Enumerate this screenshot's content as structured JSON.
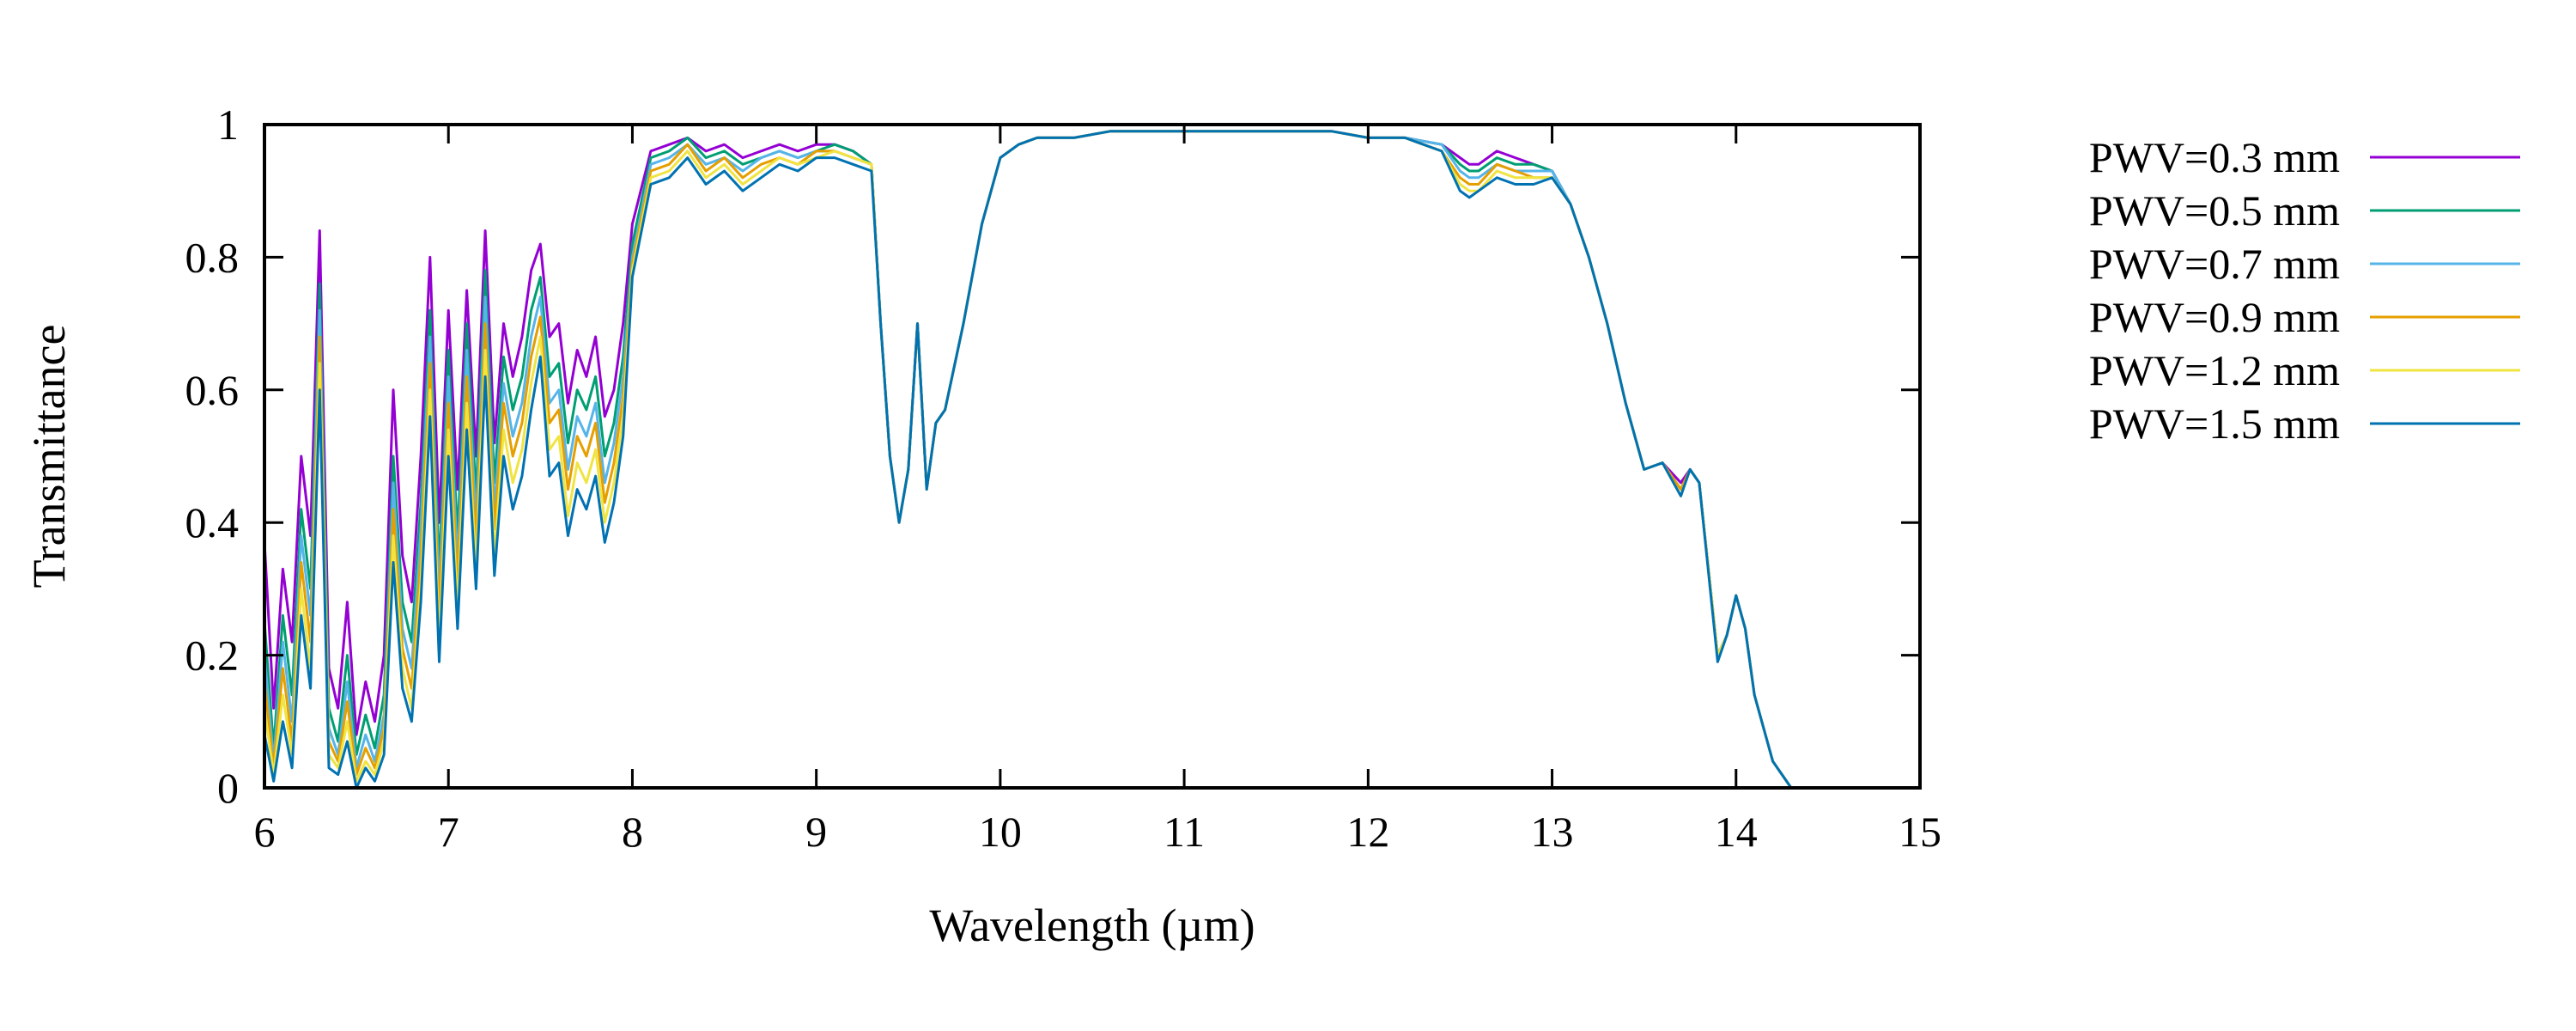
{
  "chart_data": {
    "type": "line",
    "xlabel": "Wavelength (µm)",
    "ylabel": "Transmittance",
    "xlim": [
      6,
      15
    ],
    "ylim": [
      0,
      1
    ],
    "xticks": [
      "6",
      "7",
      "8",
      "9",
      "10",
      "11",
      "12",
      "13",
      "14",
      "15"
    ],
    "yticks": [
      "0",
      "0.2",
      "0.4",
      "0.6",
      "0.8",
      "1"
    ],
    "grid": false,
    "legend_position": "outside-right",
    "x": [
      6.0,
      6.05,
      6.1,
      6.15,
      6.2,
      6.25,
      6.3,
      6.35,
      6.4,
      6.45,
      6.5,
      6.55,
      6.6,
      6.65,
      6.7,
      6.75,
      6.8,
      6.85,
      6.9,
      6.95,
      7.0,
      7.05,
      7.1,
      7.15,
      7.2,
      7.25,
      7.3,
      7.35,
      7.4,
      7.45,
      7.5,
      7.55,
      7.6,
      7.65,
      7.7,
      7.75,
      7.8,
      7.85,
      7.9,
      7.95,
      8.0,
      8.1,
      8.2,
      8.3,
      8.4,
      8.5,
      8.6,
      8.7,
      8.8,
      8.9,
      9.0,
      9.1,
      9.2,
      9.3,
      9.35,
      9.4,
      9.45,
      9.5,
      9.55,
      9.6,
      9.65,
      9.7,
      9.8,
      9.9,
      10.0,
      10.1,
      10.2,
      10.4,
      10.6,
      10.8,
      11.0,
      11.2,
      11.4,
      11.6,
      11.8,
      12.0,
      12.2,
      12.4,
      12.5,
      12.55,
      12.6,
      12.7,
      12.8,
      12.9,
      13.0,
      13.1,
      13.2,
      13.3,
      13.4,
      13.5,
      13.6,
      13.7,
      13.75,
      13.8,
      13.9,
      13.95,
      14.0,
      14.05,
      14.1,
      14.2,
      14.3,
      14.4,
      14.5,
      15.0
    ],
    "series": [
      {
        "name": "PWV=0.3 mm",
        "color": "#9400d3",
        "values": [
          0.37,
          0.12,
          0.33,
          0.22,
          0.5,
          0.38,
          0.84,
          0.18,
          0.12,
          0.28,
          0.08,
          0.16,
          0.1,
          0.2,
          0.6,
          0.35,
          0.28,
          0.5,
          0.8,
          0.4,
          0.72,
          0.45,
          0.75,
          0.5,
          0.84,
          0.52,
          0.7,
          0.62,
          0.68,
          0.78,
          0.82,
          0.68,
          0.7,
          0.58,
          0.66,
          0.62,
          0.68,
          0.56,
          0.6,
          0.7,
          0.85,
          0.96,
          0.97,
          0.98,
          0.96,
          0.97,
          0.95,
          0.96,
          0.97,
          0.96,
          0.97,
          0.97,
          0.96,
          0.94,
          0.7,
          0.5,
          0.4,
          0.48,
          0.7,
          0.45,
          0.55,
          0.57,
          0.7,
          0.85,
          0.95,
          0.97,
          0.98,
          0.98,
          0.99,
          0.99,
          0.99,
          0.99,
          0.99,
          0.99,
          0.99,
          0.98,
          0.98,
          0.97,
          0.95,
          0.94,
          0.94,
          0.96,
          0.95,
          0.94,
          0.93,
          0.88,
          0.8,
          0.7,
          0.58,
          0.48,
          0.49,
          0.46,
          0.48,
          0.46,
          0.2,
          0.23,
          0.29,
          0.24,
          0.14,
          0.04,
          0.0,
          0.0,
          0.0,
          0.0
        ]
      },
      {
        "name": "PWV=0.5 mm",
        "color": "#009e73",
        "values": [
          0.25,
          0.06,
          0.26,
          0.14,
          0.42,
          0.3,
          0.76,
          0.12,
          0.07,
          0.2,
          0.05,
          0.11,
          0.06,
          0.14,
          0.5,
          0.28,
          0.22,
          0.43,
          0.72,
          0.33,
          0.66,
          0.38,
          0.7,
          0.44,
          0.78,
          0.46,
          0.65,
          0.57,
          0.62,
          0.72,
          0.77,
          0.62,
          0.64,
          0.52,
          0.6,
          0.57,
          0.62,
          0.5,
          0.55,
          0.65,
          0.82,
          0.95,
          0.96,
          0.98,
          0.95,
          0.96,
          0.94,
          0.95,
          0.96,
          0.95,
          0.96,
          0.97,
          0.96,
          0.94,
          0.7,
          0.5,
          0.4,
          0.48,
          0.7,
          0.45,
          0.55,
          0.57,
          0.7,
          0.85,
          0.95,
          0.97,
          0.98,
          0.98,
          0.99,
          0.99,
          0.99,
          0.99,
          0.99,
          0.99,
          0.99,
          0.98,
          0.98,
          0.97,
          0.94,
          0.93,
          0.93,
          0.95,
          0.94,
          0.94,
          0.93,
          0.88,
          0.8,
          0.7,
          0.58,
          0.48,
          0.49,
          0.45,
          0.48,
          0.46,
          0.2,
          0.23,
          0.29,
          0.24,
          0.14,
          0.04,
          0.0,
          0.0,
          0.0,
          0.0
        ]
      },
      {
        "name": "PWV=0.7 mm",
        "color": "#56b4e9",
        "values": [
          0.2,
          0.04,
          0.22,
          0.1,
          0.38,
          0.26,
          0.72,
          0.09,
          0.05,
          0.16,
          0.03,
          0.08,
          0.04,
          0.11,
          0.46,
          0.24,
          0.18,
          0.39,
          0.68,
          0.29,
          0.62,
          0.34,
          0.66,
          0.4,
          0.74,
          0.42,
          0.61,
          0.53,
          0.58,
          0.68,
          0.74,
          0.58,
          0.6,
          0.48,
          0.56,
          0.53,
          0.58,
          0.46,
          0.52,
          0.62,
          0.8,
          0.94,
          0.95,
          0.97,
          0.94,
          0.95,
          0.93,
          0.95,
          0.96,
          0.95,
          0.96,
          0.96,
          0.95,
          0.94,
          0.7,
          0.5,
          0.4,
          0.48,
          0.7,
          0.45,
          0.55,
          0.57,
          0.7,
          0.85,
          0.95,
          0.97,
          0.98,
          0.98,
          0.99,
          0.99,
          0.99,
          0.99,
          0.99,
          0.99,
          0.99,
          0.98,
          0.98,
          0.97,
          0.93,
          0.92,
          0.92,
          0.94,
          0.93,
          0.93,
          0.93,
          0.88,
          0.8,
          0.7,
          0.58,
          0.48,
          0.49,
          0.45,
          0.48,
          0.46,
          0.2,
          0.23,
          0.29,
          0.24,
          0.14,
          0.04,
          0.0,
          0.0,
          0.0,
          0.0
        ]
      },
      {
        "name": "PWV=0.9 mm",
        "color": "#e69f00",
        "values": [
          0.16,
          0.03,
          0.18,
          0.07,
          0.34,
          0.22,
          0.68,
          0.07,
          0.04,
          0.13,
          0.02,
          0.06,
          0.03,
          0.09,
          0.42,
          0.21,
          0.15,
          0.35,
          0.64,
          0.26,
          0.58,
          0.31,
          0.62,
          0.37,
          0.7,
          0.39,
          0.58,
          0.5,
          0.55,
          0.65,
          0.71,
          0.55,
          0.57,
          0.45,
          0.53,
          0.5,
          0.55,
          0.43,
          0.49,
          0.59,
          0.79,
          0.93,
          0.94,
          0.97,
          0.93,
          0.95,
          0.92,
          0.94,
          0.95,
          0.94,
          0.96,
          0.96,
          0.95,
          0.94,
          0.7,
          0.5,
          0.4,
          0.48,
          0.7,
          0.45,
          0.55,
          0.57,
          0.7,
          0.85,
          0.95,
          0.97,
          0.98,
          0.98,
          0.99,
          0.99,
          0.99,
          0.99,
          0.99,
          0.99,
          0.99,
          0.98,
          0.98,
          0.96,
          0.92,
          0.91,
          0.91,
          0.94,
          0.93,
          0.92,
          0.92,
          0.88,
          0.8,
          0.7,
          0.58,
          0.48,
          0.49,
          0.45,
          0.48,
          0.46,
          0.2,
          0.23,
          0.29,
          0.24,
          0.14,
          0.04,
          0.0,
          0.0,
          0.0,
          0.0
        ]
      },
      {
        "name": "PWV=1.2 mm",
        "color": "#f0e442",
        "values": [
          0.12,
          0.02,
          0.14,
          0.05,
          0.3,
          0.18,
          0.64,
          0.05,
          0.03,
          0.1,
          0.01,
          0.04,
          0.02,
          0.07,
          0.38,
          0.18,
          0.12,
          0.31,
          0.6,
          0.22,
          0.54,
          0.27,
          0.58,
          0.33,
          0.66,
          0.35,
          0.54,
          0.46,
          0.51,
          0.61,
          0.68,
          0.51,
          0.53,
          0.41,
          0.49,
          0.46,
          0.51,
          0.4,
          0.46,
          0.56,
          0.78,
          0.92,
          0.93,
          0.96,
          0.92,
          0.94,
          0.91,
          0.93,
          0.95,
          0.94,
          0.95,
          0.96,
          0.95,
          0.94,
          0.7,
          0.5,
          0.4,
          0.48,
          0.7,
          0.45,
          0.55,
          0.57,
          0.7,
          0.85,
          0.95,
          0.97,
          0.98,
          0.98,
          0.99,
          0.99,
          0.99,
          0.99,
          0.99,
          0.99,
          0.99,
          0.98,
          0.98,
          0.96,
          0.91,
          0.9,
          0.9,
          0.93,
          0.92,
          0.92,
          0.92,
          0.88,
          0.8,
          0.7,
          0.58,
          0.48,
          0.49,
          0.44,
          0.48,
          0.46,
          0.2,
          0.23,
          0.29,
          0.24,
          0.14,
          0.04,
          0.0,
          0.0,
          0.0,
          0.0
        ]
      },
      {
        "name": "PWV=1.5 mm",
        "color": "#0072b2",
        "values": [
          0.08,
          0.01,
          0.1,
          0.03,
          0.26,
          0.15,
          0.6,
          0.03,
          0.02,
          0.07,
          0.0,
          0.03,
          0.01,
          0.05,
          0.34,
          0.15,
          0.1,
          0.28,
          0.56,
          0.19,
          0.5,
          0.24,
          0.54,
          0.3,
          0.62,
          0.32,
          0.5,
          0.42,
          0.47,
          0.57,
          0.65,
          0.47,
          0.49,
          0.38,
          0.45,
          0.42,
          0.47,
          0.37,
          0.43,
          0.53,
          0.77,
          0.91,
          0.92,
          0.95,
          0.91,
          0.93,
          0.9,
          0.92,
          0.94,
          0.93,
          0.95,
          0.95,
          0.94,
          0.93,
          0.7,
          0.5,
          0.4,
          0.48,
          0.7,
          0.45,
          0.55,
          0.57,
          0.7,
          0.85,
          0.95,
          0.97,
          0.98,
          0.98,
          0.99,
          0.99,
          0.99,
          0.99,
          0.99,
          0.99,
          0.99,
          0.98,
          0.98,
          0.96,
          0.9,
          0.89,
          0.9,
          0.92,
          0.91,
          0.91,
          0.92,
          0.88,
          0.8,
          0.7,
          0.58,
          0.48,
          0.49,
          0.44,
          0.48,
          0.46,
          0.19,
          0.23,
          0.29,
          0.24,
          0.14,
          0.04,
          0.0,
          0.0,
          0.0,
          0.0
        ]
      }
    ]
  }
}
